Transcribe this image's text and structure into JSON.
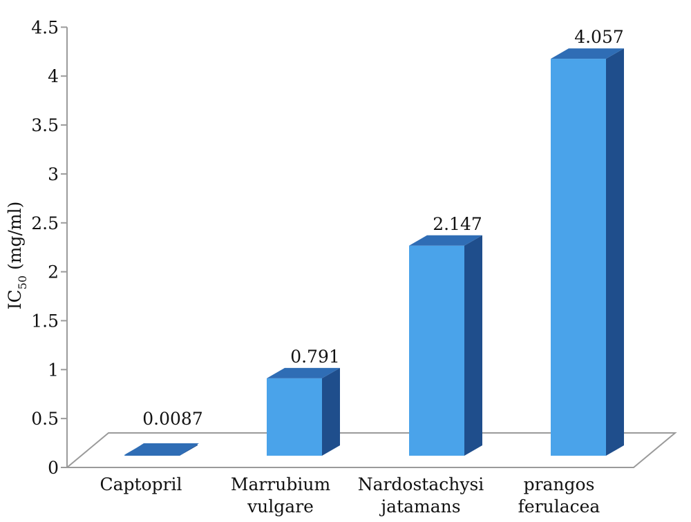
{
  "chart_data": {
    "type": "bar",
    "style": "3d-column",
    "categories": [
      [
        "Captopril"
      ],
      [
        "Marrubium",
        "vulgare"
      ],
      [
        "Nardostachysi",
        "jatamans"
      ],
      [
        "prangos",
        "ferulacea"
      ]
    ],
    "values": [
      0.0087,
      0.791,
      2.147,
      4.057
    ],
    "data_labels": [
      "0.0087",
      "0.791",
      "2.147",
      "4.057"
    ],
    "ylabel": {
      "main": "IC",
      "sub": "50",
      "rest": " (mg/ml)"
    },
    "ylim": [
      0,
      4.5
    ],
    "yticks": [
      "0",
      "0.5",
      "1",
      "1.5",
      "2",
      "2.5",
      "3",
      "3.5",
      "4",
      "4.5"
    ],
    "grid": false,
    "legend": "none",
    "colors": {
      "front": "#4aa3ea",
      "side": "#1f4e8c",
      "top": "#2f6db5",
      "floor": "#ffffff",
      "axis": "#9a9a9a"
    }
  }
}
